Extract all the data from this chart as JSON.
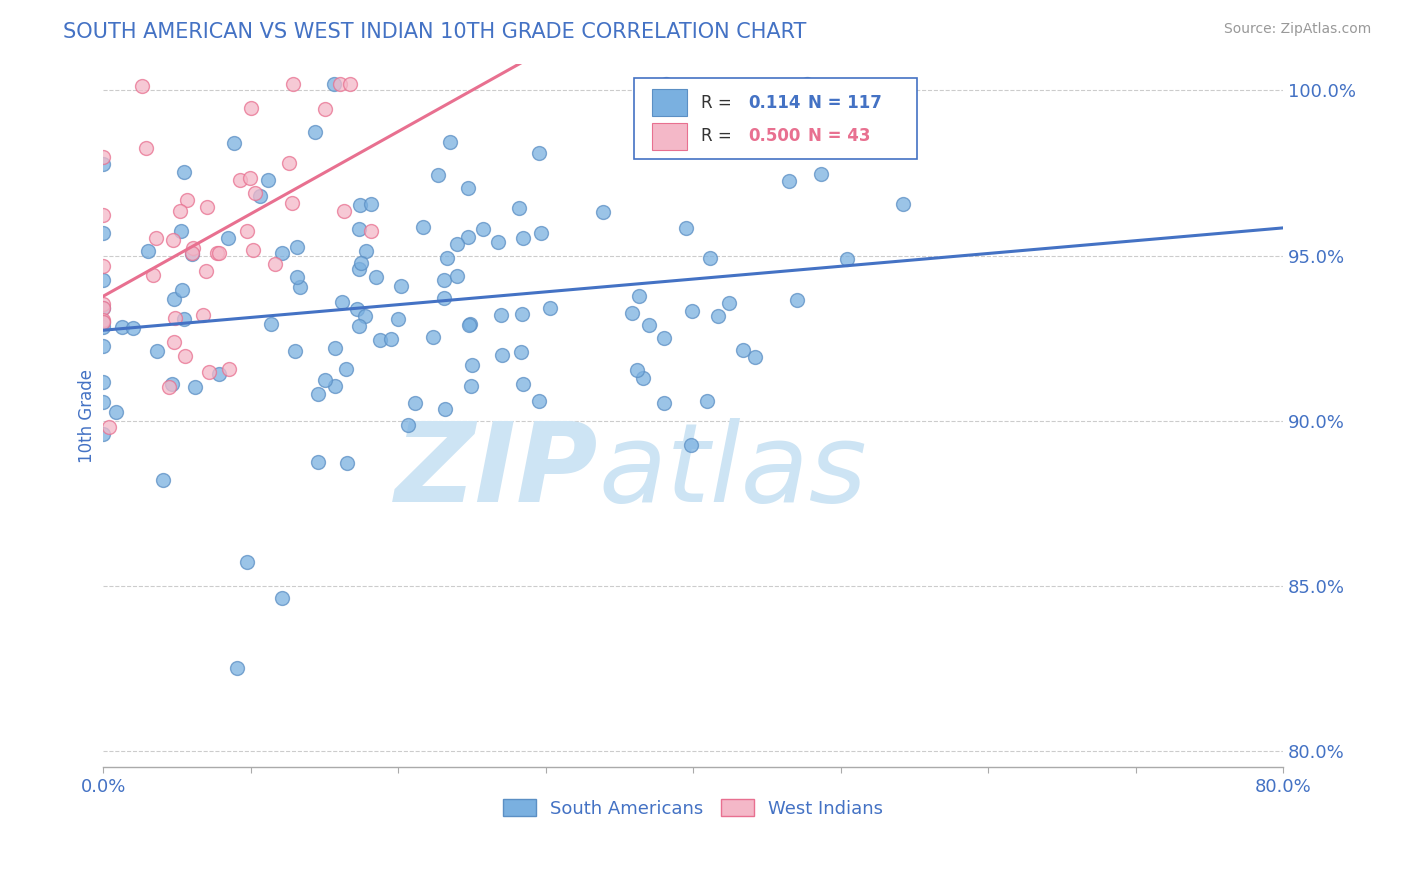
{
  "title": "SOUTH AMERICAN VS WEST INDIAN 10TH GRADE CORRELATION CHART",
  "title_color": "#4472c4",
  "source_text": "Source: ZipAtlas.com",
  "ylabel": "10th Grade",
  "xmin": 0.0,
  "xmax": 0.8,
  "ymin": 0.795,
  "ymax": 1.008,
  "r_blue": 0.114,
  "n_blue": 117,
  "r_pink": 0.5,
  "n_pink": 43,
  "blue_color": "#7ab0e0",
  "blue_edge_color": "#5b8fc4",
  "pink_color": "#f4b8c8",
  "pink_edge_color": "#e87090",
  "blue_line_color": "#4472c4",
  "pink_line_color": "#e87090",
  "legend_label_blue": "South Americans",
  "legend_label_pink": "West Indians",
  "watermark_color": "#cde4f4",
  "grid_color": "#cccccc",
  "axis_color": "#aaaaaa",
  "tick_color": "#4472c4"
}
